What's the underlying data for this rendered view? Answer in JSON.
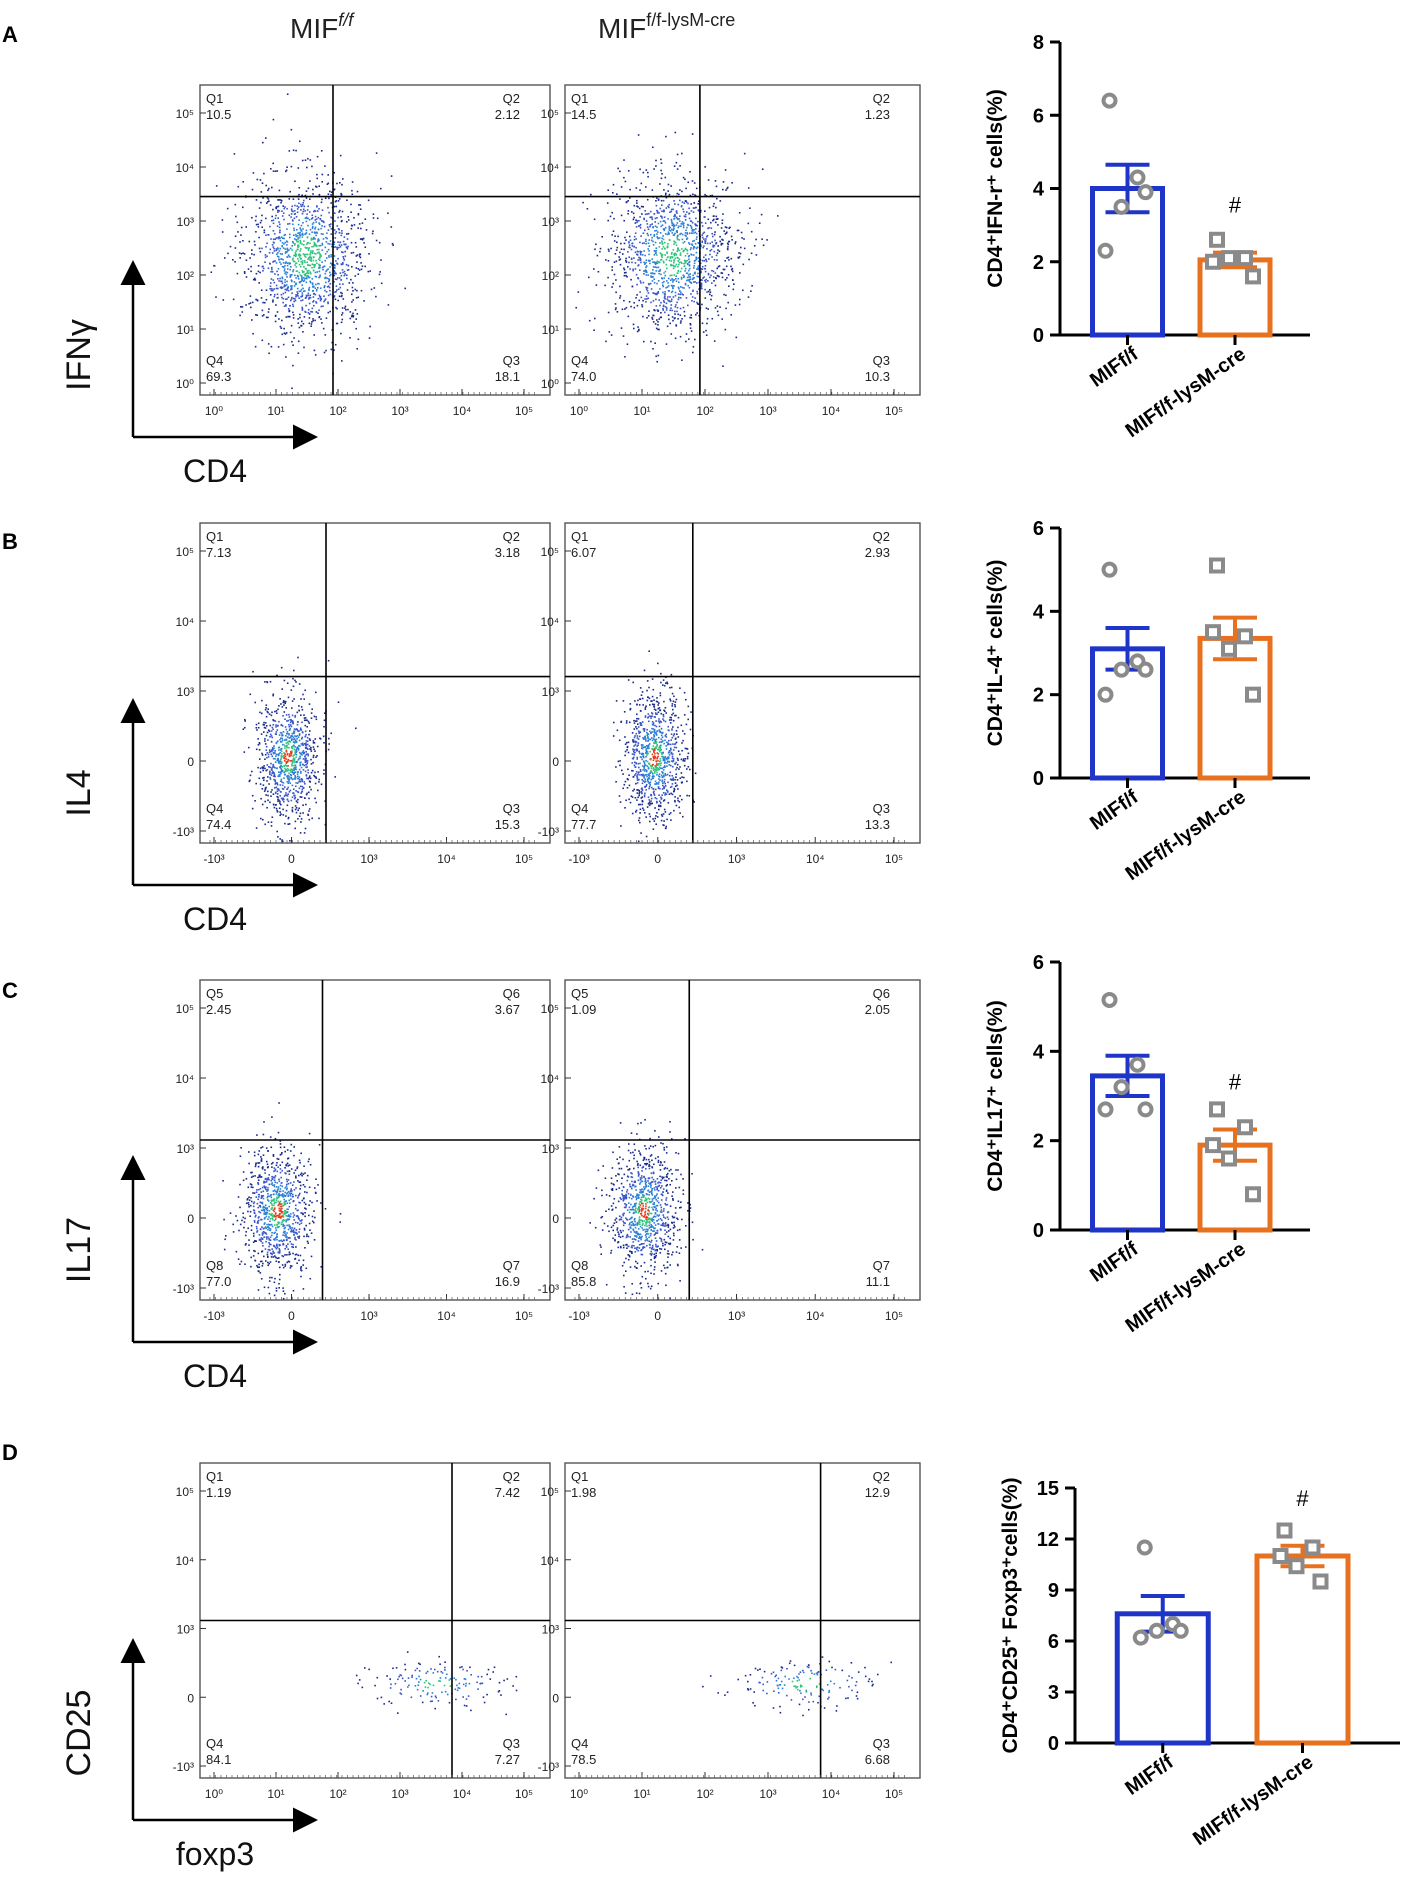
{
  "figure": {
    "column_headers": {
      "wt": "MIF",
      "wt_sup": "f/f",
      "ko": "MIF",
      "ko_sup": "f/f-lysM-cre"
    },
    "colors": {
      "wt": "#1f35c8",
      "ko": "#e8711f",
      "point": "#8a8a8a",
      "axis": "#000000"
    },
    "panels": [
      {
        "letter": "A",
        "y_marker": "IFNγ",
        "x_marker": "CD4",
        "scale": "log",
        "plots": [
          {
            "group": "wt",
            "quadrants": {
              "tl": [
                "Q1",
                "10.5"
              ],
              "tr": [
                "Q2",
                "2.12"
              ],
              "bl": [
                "Q4",
                "69.3"
              ],
              "br": [
                "Q3",
                "18.1"
              ]
            },
            "y_ticks": [
              "10⁰",
              "10¹",
              "10²",
              "10³",
              "10⁴",
              "10⁵"
            ],
            "x_ticks": [
              "10⁰",
              "10¹",
              "10²",
              "10³",
              "10⁴",
              "10⁵"
            ]
          },
          {
            "group": "ko",
            "quadrants": {
              "tl": [
                "Q1",
                "14.5"
              ],
              "tr": [
                "Q2",
                "1.23"
              ],
              "bl": [
                "Q4",
                "74.0"
              ],
              "br": [
                "Q3",
                "10.3"
              ]
            },
            "y_ticks": [
              "10⁰",
              "10¹",
              "10²",
              "10³",
              "10⁴",
              "10⁵"
            ],
            "x_ticks": [
              "10⁰",
              "10¹",
              "10²",
              "10³",
              "10⁴",
              "10⁵"
            ]
          }
        ]
      },
      {
        "letter": "B",
        "y_marker": "IL4",
        "x_marker": "CD4",
        "scale": "biexp",
        "plots": [
          {
            "group": "wt",
            "quadrants": {
              "tl": [
                "Q1",
                "7.13"
              ],
              "tr": [
                "Q2",
                "3.18"
              ],
              "bl": [
                "Q4",
                "74.4"
              ],
              "br": [
                "Q3",
                "15.3"
              ]
            },
            "y_ticks": [
              "-10³",
              "0",
              "10³",
              "10⁴",
              "10⁵"
            ],
            "x_ticks": [
              "-10³",
              "0",
              "10³",
              "10⁴",
              "10⁵"
            ]
          },
          {
            "group": "ko",
            "quadrants": {
              "tl": [
                "Q1",
                "6.07"
              ],
              "tr": [
                "Q2",
                "2.93"
              ],
              "bl": [
                "Q4",
                "77.7"
              ],
              "br": [
                "Q3",
                "13.3"
              ]
            },
            "y_ticks": [
              "-10³",
              "0",
              "10³",
              "10⁴",
              "10⁵"
            ],
            "x_ticks": [
              "-10³",
              "0",
              "10³",
              "10⁴",
              "10⁵"
            ]
          }
        ]
      },
      {
        "letter": "C",
        "y_marker": "IL17",
        "x_marker": "CD4",
        "scale": "biexp",
        "plots": [
          {
            "group": "wt",
            "quadrants": {
              "tl": [
                "Q5",
                "2.45"
              ],
              "tr": [
                "Q6",
                "3.67"
              ],
              "bl": [
                "Q8",
                "77.0"
              ],
              "br": [
                "Q7",
                "16.9"
              ]
            },
            "y_ticks": [
              "-10³",
              "0",
              "10³",
              "10⁴",
              "10⁵"
            ],
            "x_ticks": [
              "-10³",
              "0",
              "10³",
              "10⁴",
              "10⁵"
            ]
          },
          {
            "group": "ko",
            "quadrants": {
              "tl": [
                "Q5",
                "1.09"
              ],
              "tr": [
                "Q6",
                "2.05"
              ],
              "bl": [
                "Q8",
                "85.8"
              ],
              "br": [
                "Q7",
                "11.1"
              ]
            },
            "y_ticks": [
              "-10³",
              "0",
              "10³",
              "10⁴",
              "10⁵"
            ],
            "x_ticks": [
              "-10³",
              "0",
              "10³",
              "10⁴",
              "10⁵"
            ]
          }
        ]
      },
      {
        "letter": "D",
        "y_marker": "CD25",
        "x_marker": "foxp3",
        "scale": "mixed",
        "plots": [
          {
            "group": "wt",
            "quadrants": {
              "tl": [
                "Q1",
                "1.19"
              ],
              "tr": [
                "Q2",
                "7.42"
              ],
              "bl": [
                "Q4",
                "84.1"
              ],
              "br": [
                "Q3",
                "7.27"
              ]
            },
            "y_ticks": [
              "-10³",
              "0",
              "10³",
              "10⁴",
              "10⁵"
            ],
            "x_ticks": [
              "10⁰",
              "10¹",
              "10²",
              "10³",
              "10⁴",
              "10⁵"
            ]
          },
          {
            "group": "ko",
            "quadrants": {
              "tl": [
                "Q1",
                "1.98"
              ],
              "tr": [
                "Q2",
                "12.9"
              ],
              "bl": [
                "Q4",
                "78.5"
              ],
              "br": [
                "Q3",
                "6.68"
              ]
            },
            "y_ticks": [
              "-10³",
              "0",
              "10³",
              "10⁴",
              "10⁵"
            ],
            "x_ticks": [
              "10⁰",
              "10¹",
              "10²",
              "10³",
              "10⁴",
              "10⁵"
            ]
          }
        ]
      }
    ]
  },
  "chart_data": [
    {
      "type": "bar",
      "panel": "A",
      "ylabel": "CD4⁺IFN-r⁺ cells(%)",
      "categories": [
        "MIFf/f",
        "MIFf/f-lysM-cre"
      ],
      "values": [
        4.0,
        2.05
      ],
      "errors": [
        0.65,
        0.2
      ],
      "points": [
        [
          6.4,
          4.3,
          3.5,
          3.9,
          2.3
        ],
        [
          2.6,
          2.1,
          2.1,
          1.6,
          2.0
        ]
      ],
      "significance": [
        "",
        "#"
      ],
      "ylim": [
        0,
        8
      ],
      "yticks": [
        0,
        2,
        4,
        6,
        8
      ]
    },
    {
      "type": "bar",
      "panel": "B",
      "ylabel": "CD4⁺IL-4⁺ cells(%)",
      "categories": [
        "MIFf/f",
        "MIFf/f-lysM-cre"
      ],
      "values": [
        3.1,
        3.35
      ],
      "errors": [
        0.5,
        0.5
      ],
      "points": [
        [
          5.0,
          2.8,
          2.6,
          2.6,
          2.0
        ],
        [
          5.1,
          3.4,
          3.1,
          2.0,
          3.5
        ]
      ],
      "significance": [
        "",
        ""
      ],
      "ylim": [
        0,
        6
      ],
      "yticks": [
        0,
        2,
        4,
        6
      ]
    },
    {
      "type": "bar",
      "panel": "C",
      "ylabel": "CD4⁺IL17⁺ cells(%)",
      "categories": [
        "MIFf/f",
        "MIFf/f-lysM-cre"
      ],
      "values": [
        3.45,
        1.9
      ],
      "errors": [
        0.45,
        0.35
      ],
      "points": [
        [
          5.15,
          3.7,
          3.2,
          2.7,
          2.7
        ],
        [
          2.7,
          2.3,
          1.6,
          0.8,
          1.9
        ]
      ],
      "significance": [
        "",
        "#"
      ],
      "ylim": [
        0,
        6
      ],
      "yticks": [
        0,
        2,
        4,
        6
      ]
    },
    {
      "type": "bar",
      "panel": "D",
      "ylabel": "CD4⁺CD25⁺ Foxp3⁺cells(%)",
      "categories": [
        "MIFf/f",
        "MIFf/f-lysM-cre"
      ],
      "values": [
        7.6,
        11.0
      ],
      "errors": [
        1.05,
        0.6
      ],
      "points": [
        [
          11.5,
          7.0,
          6.6,
          6.6,
          6.2
        ],
        [
          12.5,
          11.5,
          10.4,
          9.5,
          11.0
        ]
      ],
      "significance": [
        "",
        "#"
      ],
      "ylim": [
        0,
        15
      ],
      "yticks": [
        0,
        3,
        6,
        9,
        12,
        15
      ]
    }
  ]
}
